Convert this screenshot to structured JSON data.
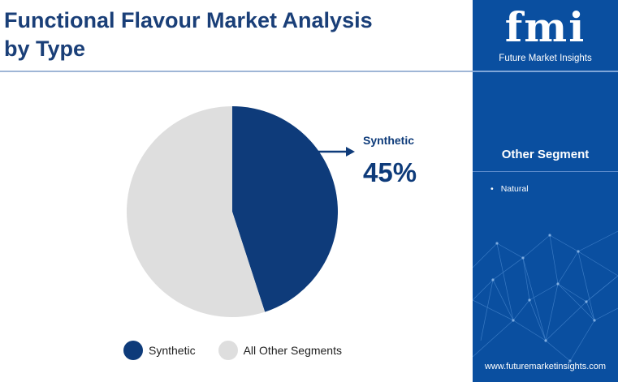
{
  "header": {
    "title": "Functional Flavour Market Analysis by Type"
  },
  "colors": {
    "accent": "#0e3b7a",
    "other": "#dedede",
    "sidebar": "#0a4fa0"
  },
  "chart_data": {
    "type": "pie",
    "title": "Functional Flavour Market Analysis by Type",
    "categories": [
      "Synthetic",
      "All Other Segments"
    ],
    "values": [
      45,
      55
    ],
    "colors": [
      "#0e3b7a",
      "#dedede"
    ],
    "callout": {
      "label": "Synthetic",
      "value_text": "45%"
    },
    "legend": {
      "position": "bottom",
      "items": [
        {
          "label": "Synthetic",
          "color": "#0e3b7a"
        },
        {
          "label": "All Other Segments",
          "color": "#dedede"
        }
      ]
    }
  },
  "sidebar": {
    "logo_mark": "fmi",
    "logo_subtitle": "Future Market Insights",
    "segment_title": "Other Segment",
    "segments": [
      "Natural"
    ],
    "website": "www.futuremarketinsights.com"
  }
}
